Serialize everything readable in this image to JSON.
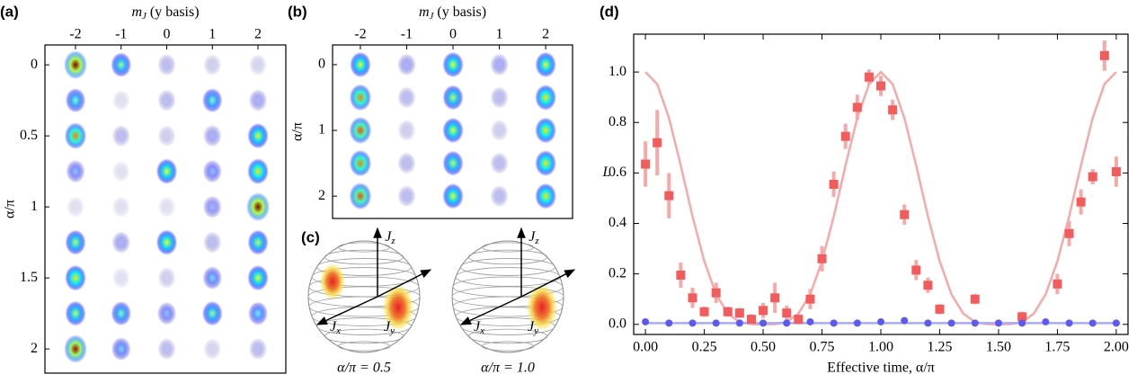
{
  "chart_data": [
    {
      "type": "heatmap",
      "panel_label": "(a)",
      "x_label": {
        "symbol": "m",
        "subscript": "J",
        "text": " (y basis)"
      },
      "y_label": "α/π",
      "x": [
        -2,
        -1,
        0,
        1,
        2
      ],
      "y": [
        0,
        0.25,
        0.5,
        0.75,
        1,
        1.25,
        1.5,
        1.75,
        2
      ],
      "values": [
        [
          1.0,
          0.5,
          0.1,
          0.05,
          0.03
        ],
        [
          0.45,
          0,
          0.1,
          0.45,
          0.15
        ],
        [
          0.75,
          0.1,
          0.05,
          0.15,
          0.6
        ],
        [
          0.25,
          0,
          0.6,
          0.25,
          0.65
        ],
        [
          0,
          0,
          0,
          0.2,
          1.0
        ],
        [
          0.55,
          0.15,
          0.6,
          0.1,
          0.55
        ],
        [
          0.65,
          0,
          0.05,
          0.3,
          0.6
        ],
        [
          0.55,
          0.45,
          0.25,
          0.5,
          0.35
        ],
        [
          0.95,
          0.3,
          0.1,
          0.03,
          0.1
        ]
      ],
      "xlim": [
        -2.67,
        2.61
      ],
      "ylim": [
        -0.14,
        2.17
      ],
      "xticks": [
        -2,
        -1,
        0,
        1,
        2
      ],
      "yticks": [
        0,
        0.5,
        1,
        1.5,
        2
      ]
    },
    {
      "type": "heatmap",
      "panel_label": "(b)",
      "x_label": {
        "symbol": "m",
        "subscript": "J",
        "text": " (y basis)"
      },
      "y_label": "α/π",
      "x": [
        -2,
        -1,
        0,
        1,
        2
      ],
      "y": [
        0,
        0.5,
        1,
        1.5,
        2
      ],
      "values": [
        [
          0.6,
          0.15,
          0.6,
          0.15,
          0.6
        ],
        [
          0.75,
          0.1,
          0.55,
          0.1,
          0.65
        ],
        [
          0.8,
          0.05,
          0.6,
          0.05,
          0.65
        ],
        [
          0.75,
          0.1,
          0.55,
          0.1,
          0.65
        ],
        [
          0.8,
          0.1,
          0.6,
          0.1,
          0.65
        ]
      ],
      "xlim": [
        -2.6,
        2.58
      ],
      "ylim": [
        -0.3,
        2.34
      ],
      "xticks": [
        -2,
        -1,
        0,
        1,
        2
      ],
      "yticks": [
        0,
        1,
        2
      ]
    },
    {
      "type": "scatter",
      "panel_label": "(d)",
      "x_label": "Effective time, α/π",
      "y_label": "L",
      "xlim": [
        -0.05,
        2.05
      ],
      "ylim": [
        -0.04,
        1.15
      ],
      "xticks": [
        {
          "value": 0,
          "label": "0.00"
        },
        {
          "value": 0.25,
          "label": "0.25"
        },
        {
          "value": 0.5,
          "label": "0.50"
        },
        {
          "value": 0.75,
          "label": "0.75"
        },
        {
          "value": 1,
          "label": "1.00"
        },
        {
          "value": 1.25,
          "label": "1.25"
        },
        {
          "value": 1.5,
          "label": "1.50"
        },
        {
          "value": 1.75,
          "label": "1.75"
        },
        {
          "value": 2,
          "label": "2.00"
        }
      ],
      "yticks": [
        {
          "value": 0,
          "label": "0.0"
        },
        {
          "value": 0.2,
          "label": "0.2"
        },
        {
          "value": 0.4,
          "label": "0.4"
        },
        {
          "value": 0.6,
          "label": "0.6"
        },
        {
          "value": 0.8,
          "label": "0.8"
        },
        {
          "value": 1,
          "label": "1.0"
        }
      ],
      "series": [
        {
          "kind": "line",
          "color": "#f6a9a9",
          "x": [
            0,
            0.05,
            0.1,
            0.15,
            0.2,
            0.25,
            0.3,
            0.35,
            0.4,
            0.45,
            0.5,
            0.55,
            0.6,
            0.65,
            0.7,
            0.75,
            0.8,
            0.85,
            0.9,
            0.95,
            1,
            1.05,
            1.1,
            1.15,
            1.2,
            1.25,
            1.3,
            1.35,
            1.4,
            1.45,
            1.5,
            1.55,
            1.6,
            1.65,
            1.7,
            1.75,
            1.8,
            1.85,
            1.9,
            1.95,
            2
          ],
          "values": [
            1,
            0.952,
            0.818,
            0.63,
            0.428,
            0.25,
            0.119,
            0.043,
            0.009,
            0.001,
            0,
            0.001,
            0.009,
            0.043,
            0.119,
            0.25,
            0.428,
            0.63,
            0.818,
            0.952,
            1,
            0.952,
            0.818,
            0.63,
            0.428,
            0.25,
            0.119,
            0.043,
            0.009,
            0.001,
            0,
            0.001,
            0.009,
            0.043,
            0.119,
            0.25,
            0.428,
            0.63,
            0.818,
            0.952,
            1
          ]
        },
        {
          "kind": "line",
          "color": "#a9a9f6",
          "x": [
            0,
            2
          ],
          "values": [
            0.005,
            0.005
          ]
        },
        {
          "kind": "errorbar",
          "marker": "square",
          "color": "#f25c5c",
          "error_color": "#f6a9a9",
          "x": [
            0,
            0.05,
            0.1,
            0.15,
            0.2,
            0.25,
            0.3,
            0.35,
            0.4,
            0.45,
            0.5,
            0.55,
            0.6,
            0.65,
            0.7,
            0.75,
            0.8,
            0.85,
            0.9,
            0.95,
            1,
            1.05,
            1.1,
            1.15,
            1.2,
            1.25,
            1.4,
            1.6,
            1.75,
            1.8,
            1.85,
            1.9,
            1.95,
            2
          ],
          "values": [
            0.635,
            0.72,
            0.51,
            0.195,
            0.105,
            0.05,
            0.125,
            0.05,
            0.045,
            0.02,
            0.055,
            0.105,
            0.045,
            0.02,
            0.1,
            0.26,
            0.555,
            0.745,
            0.86,
            0.98,
            0.945,
            0.85,
            0.435,
            0.215,
            0.155,
            0.06,
            0.1,
            0.03,
            0.16,
            0.36,
            0.485,
            0.585,
            1.065,
            0.605
          ],
          "errors": [
            0.09,
            0.13,
            0.09,
            0.05,
            0.04,
            0.02,
            0.04,
            0.02,
            0.02,
            0.02,
            0.03,
            0.06,
            0.03,
            0.02,
            0.04,
            0.05,
            0.05,
            0.05,
            0.05,
            0.03,
            0.04,
            0.04,
            0.04,
            0.04,
            0.03,
            0.02,
            0.02,
            0.02,
            0.04,
            0.05,
            0.05,
            0.03,
            0.06,
            0.06
          ]
        },
        {
          "kind": "points",
          "marker": "circle",
          "color": "#5b5bf2",
          "x": [
            0,
            0.1,
            0.2,
            0.3,
            0.4,
            0.5,
            0.6,
            0.7,
            0.8,
            0.9,
            1,
            1.1,
            1.2,
            1.3,
            1.4,
            1.5,
            1.6,
            1.7,
            1.8,
            1.9,
            2
          ],
          "values": [
            0.01,
            0.005,
            0.005,
            0.005,
            0.005,
            0.005,
            0.005,
            0.01,
            0.005,
            0.005,
            0.01,
            0.015,
            0.005,
            0.005,
            0.005,
            0.005,
            0.005,
            0.01,
            0.005,
            0.005,
            0.005
          ]
        }
      ]
    }
  ],
  "diagram": {
    "panel_label": "(c)",
    "spheres": [
      {
        "caption": "α/π = 0.5",
        "labels": [
          {
            "symbol": "J",
            "subscript": "z"
          },
          {
            "symbol": "J",
            "subscript": "x"
          },
          {
            "symbol": "J",
            "subscript": "y"
          }
        ]
      },
      {
        "caption": "α/π = 1.0",
        "labels": [
          {
            "symbol": "J",
            "subscript": "z"
          },
          {
            "symbol": "J",
            "subscript": "x"
          },
          {
            "symbol": "J",
            "subscript": "y"
          }
        ]
      }
    ]
  }
}
